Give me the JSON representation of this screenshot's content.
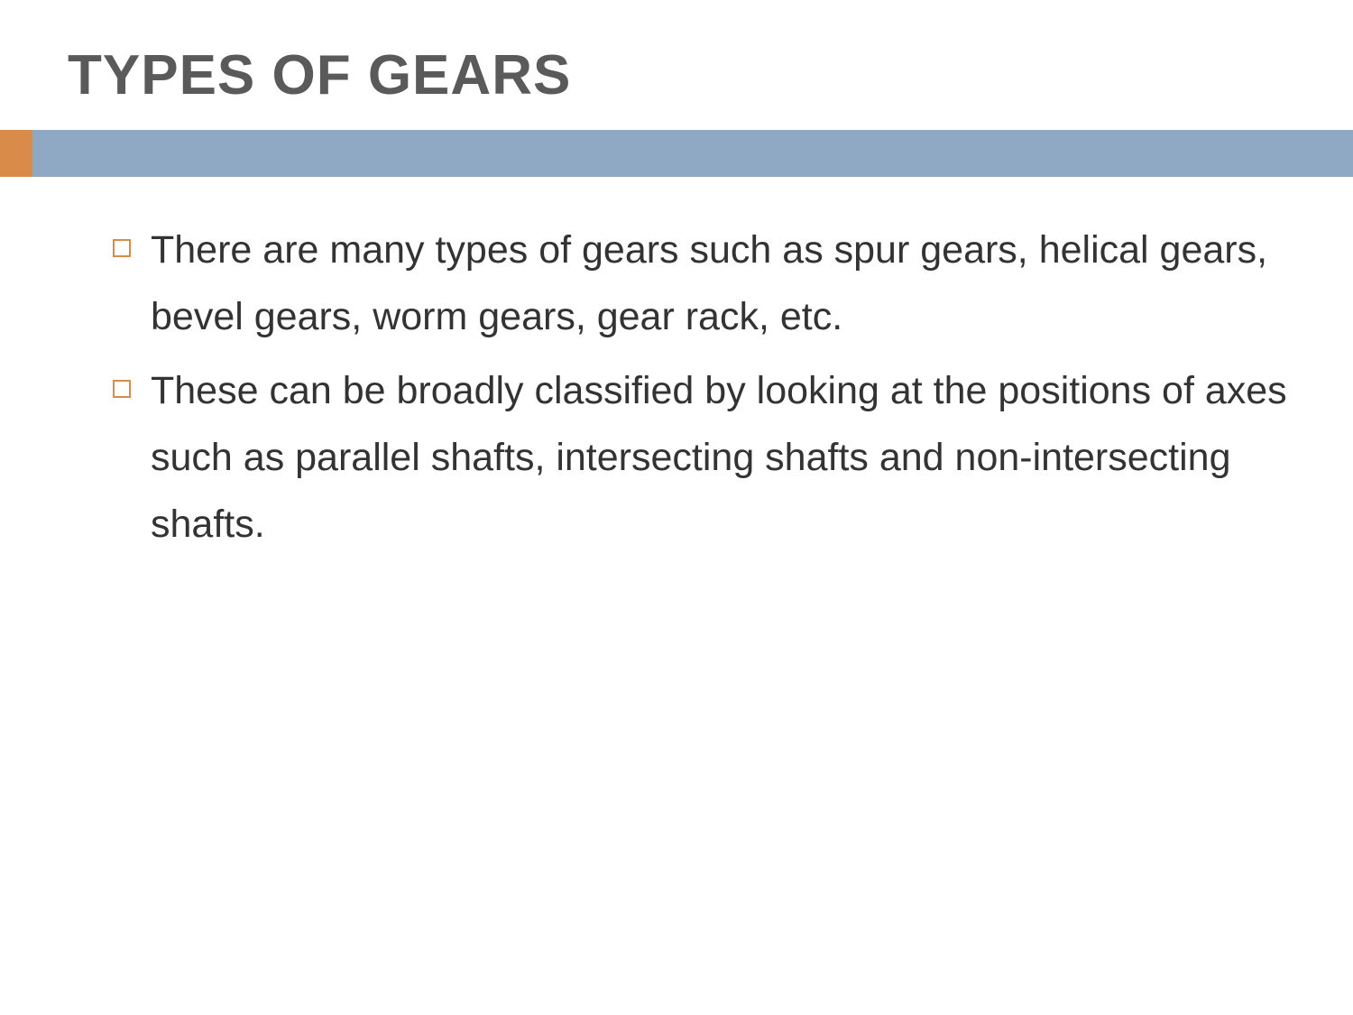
{
  "slide": {
    "title": "TYPES OF GEARS",
    "title_color": "#5a5a5a",
    "title_fontsize": 62,
    "title_fontweight": "bold",
    "divider_bar_color": "#8fa9c4",
    "divider_accent_color": "#d98c4a",
    "background_color": "#ffffff",
    "bullets": [
      {
        "text": "There are many types of gears such as spur gears, helical gears, bevel gears, worm gears, gear rack, etc."
      },
      {
        "text": "These can be broadly classified by looking at the positions of axes such as parallel shafts, intersecting shafts and non-intersecting shafts."
      }
    ],
    "bullet_marker_color": "#d98c4a",
    "bullet_text_color": "#333333",
    "bullet_fontsize": 43
  }
}
